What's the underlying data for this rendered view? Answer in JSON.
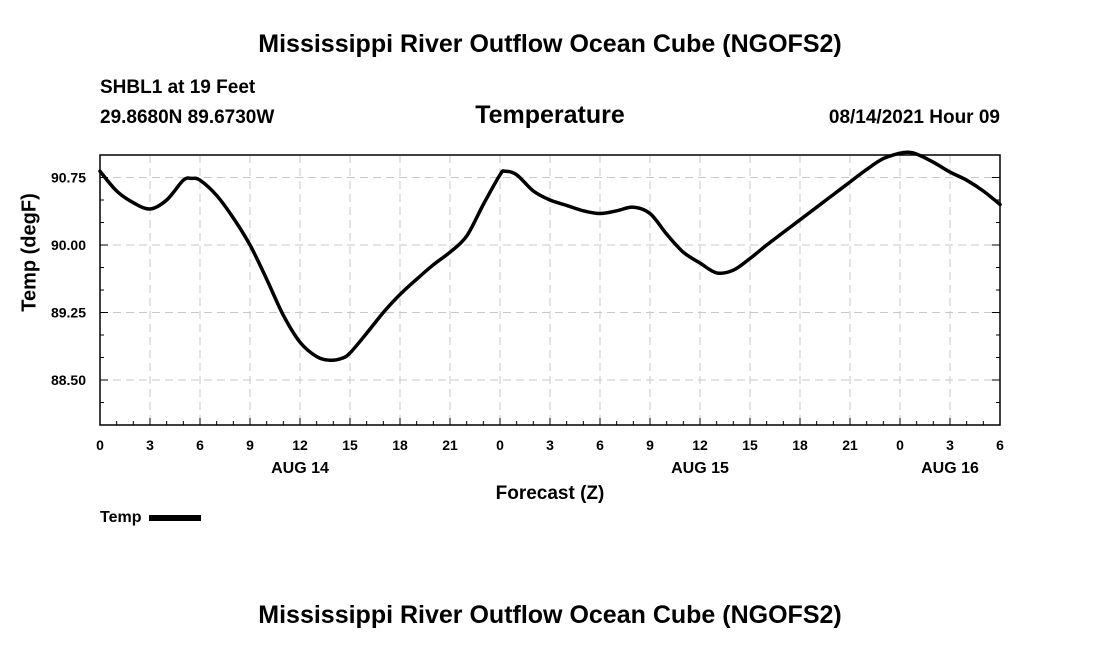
{
  "header": {
    "title_top": "Mississippi River Outflow Ocean Cube (NGOFS2)",
    "station": "SHBL1 at 19 Feet",
    "coords": "29.8680N  89.6730W",
    "variable": "Temperature",
    "datetime": "08/14/2021 Hour 09"
  },
  "footer": {
    "title_bottom": "Mississippi River Outflow Ocean Cube (NGOFS2)"
  },
  "legend": {
    "label": "Temp",
    "color": "#000000"
  },
  "chart_data": {
    "type": "line",
    "title": "Temperature",
    "xlabel": "Forecast (Z)",
    "ylabel": "Temp (degF)",
    "xlim": [
      0,
      54
    ],
    "ylim": [
      88.0,
      91.0
    ],
    "grid": true,
    "x_ticks": [
      0,
      3,
      6,
      9,
      12,
      15,
      18,
      21,
      24,
      27,
      30,
      33,
      36,
      39,
      42,
      45,
      48,
      51,
      54
    ],
    "x_tick_labels": [
      "0",
      "3",
      "6",
      "9",
      "12",
      "15",
      "18",
      "21",
      "0",
      "3",
      "6",
      "9",
      "12",
      "15",
      "18",
      "21",
      "0",
      "3",
      "6"
    ],
    "y_ticks": [
      88.5,
      89.25,
      90.0,
      90.75
    ],
    "y_tick_labels": [
      "88.50",
      "89.25",
      "90.00",
      "90.75"
    ],
    "date_labels": [
      {
        "x": 12,
        "label": "AUG 14"
      },
      {
        "x": 36,
        "label": "AUG 15"
      },
      {
        "x": 51,
        "label": "AUG 16"
      }
    ],
    "series": [
      {
        "name": "Temp",
        "color": "#000000",
        "x": [
          0,
          1,
          2,
          3,
          4,
          5,
          5.5,
          6,
          7,
          8,
          9,
          10,
          11,
          12,
          13,
          13.8,
          14.5,
          15,
          16,
          17,
          18,
          19,
          20,
          21,
          22,
          23,
          24,
          24.3,
          25,
          26,
          27,
          28,
          29,
          30,
          31,
          32,
          33,
          34,
          35,
          36,
          37,
          38,
          39,
          40,
          41,
          42,
          43,
          44,
          45,
          46,
          47,
          48,
          48.5,
          49,
          50,
          51,
          52,
          53,
          54
        ],
        "y": [
          90.82,
          90.6,
          90.47,
          90.4,
          90.5,
          90.72,
          90.74,
          90.72,
          90.55,
          90.3,
          90.0,
          89.62,
          89.22,
          88.92,
          88.76,
          88.72,
          88.74,
          88.8,
          89.02,
          89.25,
          89.45,
          89.62,
          89.78,
          89.92,
          90.1,
          90.45,
          90.78,
          90.82,
          90.78,
          90.6,
          90.5,
          90.44,
          90.38,
          90.35,
          90.38,
          90.42,
          90.35,
          90.12,
          89.92,
          89.8,
          89.69,
          89.72,
          89.85,
          90.0,
          90.14,
          90.28,
          90.42,
          90.56,
          90.7,
          90.84,
          90.96,
          91.02,
          91.03,
          91.01,
          90.92,
          90.81,
          90.72,
          90.6,
          90.45
        ]
      }
    ]
  }
}
